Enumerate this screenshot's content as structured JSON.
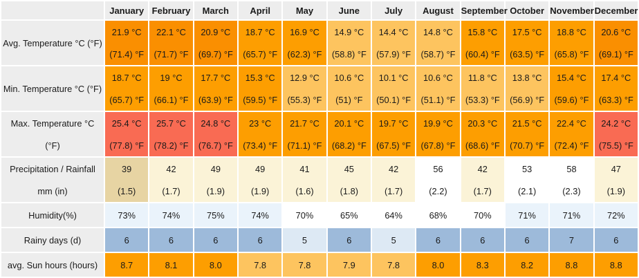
{
  "colors": {
    "orangeDeep": "#fa8f01",
    "orange": "#fd9e01",
    "orangeLight": "#fdc45f",
    "red": "#f96b53",
    "tan": "#e7d4a3",
    "cream": "#fbf3d7",
    "white": "#ffffff",
    "paleBlue": "#eaf3fb",
    "blue": "#9dbada",
    "blueLight": "#dde9f4",
    "headerBg": "#ededed"
  },
  "table": {
    "columns": [
      "January",
      "February",
      "March",
      "April",
      "May",
      "June",
      "July",
      "August",
      "September",
      "October",
      "November",
      "December"
    ],
    "rows": [
      {
        "key": "avg-temperature",
        "tall": true,
        "label_lines": [
          "Avg. Temperature °C (°F)"
        ],
        "cells": [
          {
            "lines": [
              "21.9 °C",
              "(71.4) °F"
            ],
            "bg": "orangeDeep"
          },
          {
            "lines": [
              "22.1 °C",
              "(71.7) °F"
            ],
            "bg": "orangeDeep"
          },
          {
            "lines": [
              "20.9 °C",
              "(69.7) °F"
            ],
            "bg": "orangeDeep"
          },
          {
            "lines": [
              "18.7 °C",
              "(65.7) °F"
            ],
            "bg": "orange"
          },
          {
            "lines": [
              "16.9 °C",
              "(62.3) °F"
            ],
            "bg": "orange"
          },
          {
            "lines": [
              "14.9 °C",
              "(58.8) °F"
            ],
            "bg": "orangeLight"
          },
          {
            "lines": [
              "14.4 °C",
              "(57.9) °F"
            ],
            "bg": "orangeLight"
          },
          {
            "lines": [
              "14.8 °C",
              "(58.7) °F"
            ],
            "bg": "orangeLight"
          },
          {
            "lines": [
              "15.8 °C",
              "(60.4) °F"
            ],
            "bg": "orange"
          },
          {
            "lines": [
              "17.5 °C",
              "(63.5) °F"
            ],
            "bg": "orange"
          },
          {
            "lines": [
              "18.8 °C",
              "(65.8) °F"
            ],
            "bg": "orange"
          },
          {
            "lines": [
              "20.6 °C",
              "(69.1) °F"
            ],
            "bg": "orangeDeep"
          }
        ]
      },
      {
        "key": "min-temperature",
        "tall": true,
        "label_lines": [
          "Min. Temperature °C (°F)"
        ],
        "cells": [
          {
            "lines": [
              "18.7 °C",
              "(65.7) °F"
            ],
            "bg": "orange"
          },
          {
            "lines": [
              "19 °C",
              "(66.1) °F"
            ],
            "bg": "orange"
          },
          {
            "lines": [
              "17.7 °C",
              "(63.9) °F"
            ],
            "bg": "orange"
          },
          {
            "lines": [
              "15.3 °C",
              "(59.5) °F"
            ],
            "bg": "orange"
          },
          {
            "lines": [
              "12.9 °C",
              "(55.3) °F"
            ],
            "bg": "orangeLight"
          },
          {
            "lines": [
              "10.6 °C",
              "(51) °F"
            ],
            "bg": "orangeLight"
          },
          {
            "lines": [
              "10.1 °C",
              "(50.1) °F"
            ],
            "bg": "orangeLight"
          },
          {
            "lines": [
              "10.6 °C",
              "(51.1) °F"
            ],
            "bg": "orangeLight"
          },
          {
            "lines": [
              "11.8 °C",
              "(53.3) °F"
            ],
            "bg": "orangeLight"
          },
          {
            "lines": [
              "13.8 °C",
              "(56.9) °F"
            ],
            "bg": "orangeLight"
          },
          {
            "lines": [
              "15.4 °C",
              "(59.6) °F"
            ],
            "bg": "orange"
          },
          {
            "lines": [
              "17.4 °C",
              "(63.3) °F"
            ],
            "bg": "orange"
          }
        ]
      },
      {
        "key": "max-temperature",
        "tall": true,
        "label_lines": [
          "Max. Temperature °C",
          "(°F)"
        ],
        "cells": [
          {
            "lines": [
              "25.4 °C",
              "(77.8) °F"
            ],
            "bg": "red"
          },
          {
            "lines": [
              "25.7 °C",
              "(78.2) °F"
            ],
            "bg": "red"
          },
          {
            "lines": [
              "24.8 °C",
              "(76.7) °F"
            ],
            "bg": "red"
          },
          {
            "lines": [
              "23 °C",
              "(73.4) °F"
            ],
            "bg": "orange"
          },
          {
            "lines": [
              "21.7 °C",
              "(71.1) °F"
            ],
            "bg": "orange"
          },
          {
            "lines": [
              "20.1 °C",
              "(68.2) °F"
            ],
            "bg": "orange"
          },
          {
            "lines": [
              "19.7 °C",
              "(67.5) °F"
            ],
            "bg": "orange"
          },
          {
            "lines": [
              "19.9 °C",
              "(67.8) °F"
            ],
            "bg": "orange"
          },
          {
            "lines": [
              "20.3 °C",
              "(68.6) °F"
            ],
            "bg": "orange"
          },
          {
            "lines": [
              "21.5 °C",
              "(70.7) °F"
            ],
            "bg": "orange"
          },
          {
            "lines": [
              "22.4 °C",
              "(72.4) °F"
            ],
            "bg": "orange"
          },
          {
            "lines": [
              "24.2 °C",
              "(75.5) °F"
            ],
            "bg": "red"
          }
        ]
      },
      {
        "key": "precipitation",
        "tall": true,
        "label_lines": [
          "Precipitation / Rainfall",
          "mm (in)"
        ],
        "cells": [
          {
            "lines": [
              "39",
              "(1.5)"
            ],
            "bg": "tan"
          },
          {
            "lines": [
              "42",
              "(1.7)"
            ],
            "bg": "cream"
          },
          {
            "lines": [
              "49",
              "(1.9)"
            ],
            "bg": "cream"
          },
          {
            "lines": [
              "49",
              "(1.9)"
            ],
            "bg": "cream"
          },
          {
            "lines": [
              "41",
              "(1.6)"
            ],
            "bg": "cream"
          },
          {
            "lines": [
              "45",
              "(1.8)"
            ],
            "bg": "cream"
          },
          {
            "lines": [
              "42",
              "(1.7)"
            ],
            "bg": "cream"
          },
          {
            "lines": [
              "56",
              "(2.2)"
            ],
            "bg": "white"
          },
          {
            "lines": [
              "42",
              "(1.7)"
            ],
            "bg": "cream"
          },
          {
            "lines": [
              "53",
              "(2.1)"
            ],
            "bg": "white"
          },
          {
            "lines": [
              "58",
              "(2.3)"
            ],
            "bg": "white"
          },
          {
            "lines": [
              "47",
              "(1.9)"
            ],
            "bg": "cream"
          }
        ]
      },
      {
        "key": "humidity",
        "tall": false,
        "label_lines": [
          "Humidity(%)"
        ],
        "cells": [
          {
            "lines": [
              "73%"
            ],
            "bg": "paleBlue"
          },
          {
            "lines": [
              "74%"
            ],
            "bg": "paleBlue"
          },
          {
            "lines": [
              "75%"
            ],
            "bg": "paleBlue"
          },
          {
            "lines": [
              "74%"
            ],
            "bg": "paleBlue"
          },
          {
            "lines": [
              "70%"
            ],
            "bg": "white"
          },
          {
            "lines": [
              "65%"
            ],
            "bg": "white"
          },
          {
            "lines": [
              "64%"
            ],
            "bg": "white"
          },
          {
            "lines": [
              "68%"
            ],
            "bg": "white"
          },
          {
            "lines": [
              "70%"
            ],
            "bg": "white"
          },
          {
            "lines": [
              "71%"
            ],
            "bg": "paleBlue"
          },
          {
            "lines": [
              "71%"
            ],
            "bg": "paleBlue"
          },
          {
            "lines": [
              "72%"
            ],
            "bg": "paleBlue"
          }
        ]
      },
      {
        "key": "rainy-days",
        "tall": false,
        "label_lines": [
          "Rainy days (d)"
        ],
        "cells": [
          {
            "lines": [
              "6"
            ],
            "bg": "blue"
          },
          {
            "lines": [
              "6"
            ],
            "bg": "blue"
          },
          {
            "lines": [
              "6"
            ],
            "bg": "blue"
          },
          {
            "lines": [
              "6"
            ],
            "bg": "blue"
          },
          {
            "lines": [
              "5"
            ],
            "bg": "blueLight"
          },
          {
            "lines": [
              "6"
            ],
            "bg": "blue"
          },
          {
            "lines": [
              "5"
            ],
            "bg": "blueLight"
          },
          {
            "lines": [
              "6"
            ],
            "bg": "blue"
          },
          {
            "lines": [
              "6"
            ],
            "bg": "blue"
          },
          {
            "lines": [
              "6"
            ],
            "bg": "blue"
          },
          {
            "lines": [
              "7"
            ],
            "bg": "blue"
          },
          {
            "lines": [
              "6"
            ],
            "bg": "blue"
          }
        ]
      },
      {
        "key": "sun-hours",
        "tall": false,
        "label_lines": [
          "avg. Sun hours (hours)"
        ],
        "cells": [
          {
            "lines": [
              "8.7"
            ],
            "bg": "orange"
          },
          {
            "lines": [
              "8.1"
            ],
            "bg": "orange"
          },
          {
            "lines": [
              "8.0"
            ],
            "bg": "orange"
          },
          {
            "lines": [
              "7.8"
            ],
            "bg": "orangeLight"
          },
          {
            "lines": [
              "7.8"
            ],
            "bg": "orangeLight"
          },
          {
            "lines": [
              "7.9"
            ],
            "bg": "orangeLight"
          },
          {
            "lines": [
              "7.8"
            ],
            "bg": "orangeLight"
          },
          {
            "lines": [
              "8.0"
            ],
            "bg": "orange"
          },
          {
            "lines": [
              "8.3"
            ],
            "bg": "orange"
          },
          {
            "lines": [
              "8.2"
            ],
            "bg": "orange"
          },
          {
            "lines": [
              "8.8"
            ],
            "bg": "orange"
          },
          {
            "lines": [
              "8.8"
            ],
            "bg": "orange"
          }
        ]
      }
    ]
  },
  "chart_data": {
    "type": "table",
    "title": "Monthly climate table",
    "categories": [
      "January",
      "February",
      "March",
      "April",
      "May",
      "June",
      "July",
      "August",
      "September",
      "October",
      "November",
      "December"
    ],
    "series": [
      {
        "name": "Avg. Temperature °C",
        "values": [
          21.9,
          22.1,
          20.9,
          18.7,
          16.9,
          14.9,
          14.4,
          14.8,
          15.8,
          17.5,
          18.8,
          20.6
        ]
      },
      {
        "name": "Avg. Temperature °F",
        "values": [
          71.4,
          71.7,
          69.7,
          65.7,
          62.3,
          58.8,
          57.9,
          58.7,
          60.4,
          63.5,
          65.8,
          69.1
        ]
      },
      {
        "name": "Min. Temperature °C",
        "values": [
          18.7,
          19,
          17.7,
          15.3,
          12.9,
          10.6,
          10.1,
          10.6,
          11.8,
          13.8,
          15.4,
          17.4
        ]
      },
      {
        "name": "Min. Temperature °F",
        "values": [
          65.7,
          66.1,
          63.9,
          59.5,
          55.3,
          51,
          50.1,
          51.1,
          53.3,
          56.9,
          59.6,
          63.3
        ]
      },
      {
        "name": "Max. Temperature °C",
        "values": [
          25.4,
          25.7,
          24.8,
          23,
          21.7,
          20.1,
          19.7,
          19.9,
          20.3,
          21.5,
          22.4,
          24.2
        ]
      },
      {
        "name": "Max. Temperature °F",
        "values": [
          77.8,
          78.2,
          76.7,
          73.4,
          71.1,
          68.2,
          67.5,
          67.8,
          68.6,
          70.7,
          72.4,
          75.5
        ]
      },
      {
        "name": "Precipitation mm",
        "values": [
          39,
          42,
          49,
          49,
          41,
          45,
          42,
          56,
          42,
          53,
          58,
          47
        ]
      },
      {
        "name": "Precipitation in",
        "values": [
          1.5,
          1.7,
          1.9,
          1.9,
          1.6,
          1.8,
          1.7,
          2.2,
          1.7,
          2.1,
          2.3,
          1.9
        ]
      },
      {
        "name": "Humidity %",
        "values": [
          73,
          74,
          75,
          74,
          70,
          65,
          64,
          68,
          70,
          71,
          71,
          72
        ]
      },
      {
        "name": "Rainy days (d)",
        "values": [
          6,
          6,
          6,
          6,
          5,
          6,
          5,
          6,
          6,
          6,
          7,
          6
        ]
      },
      {
        "name": "avg. Sun hours",
        "values": [
          8.7,
          8.1,
          8.0,
          7.8,
          7.8,
          7.9,
          7.8,
          8.0,
          8.3,
          8.2,
          8.8,
          8.8
        ]
      }
    ]
  }
}
